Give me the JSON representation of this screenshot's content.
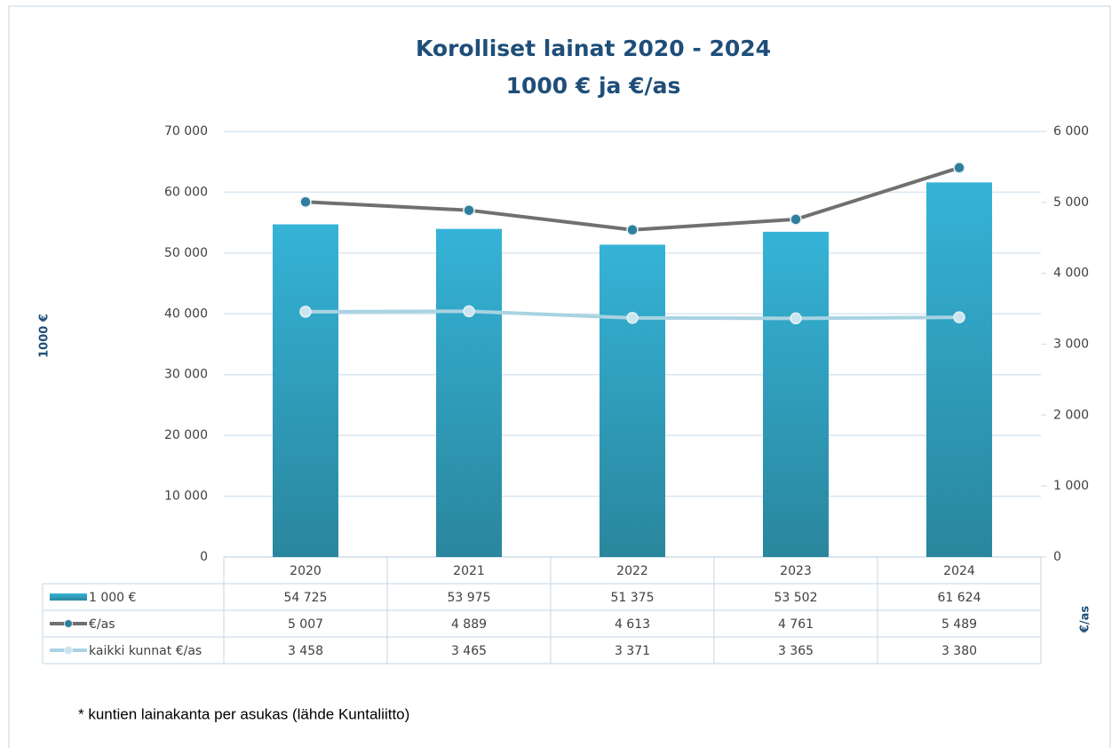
{
  "chart_data": {
    "type": "bar",
    "title": "Korolliset lainat 2020 - 2024",
    "subtitle": "1000 € ja €/as",
    "y_label": "1000 €",
    "y2_label": "€/as",
    "note": "* kuntien lainakanta per asukas (lähde Kuntaliitto)",
    "categories": [
      "2020",
      "2021",
      "2022",
      "2023",
      "2024"
    ],
    "series": [
      {
        "name": "1 000 €",
        "type": "bar",
        "color": "#35b3d7",
        "values": [
          54725,
          53975,
          51375,
          53502,
          61624
        ],
        "value_labels": [
          "54 725",
          "53 975",
          "51 375",
          "53 502",
          "61 624"
        ]
      },
      {
        "name": "€/as",
        "type": "line",
        "axis": "y2",
        "color": "#707070",
        "marker_color": "#2f7f9c",
        "values": [
          5007,
          4889,
          4613,
          4761,
          5489
        ],
        "value_labels": [
          "5 007",
          "4 889",
          "4 613",
          "4 761",
          "5 489"
        ]
      },
      {
        "name": "kaikki kunnat €/as",
        "type": "line",
        "axis": "y2",
        "color": "#a8d3e2",
        "marker_color": "#c9e5ef",
        "values": [
          3458,
          3465,
          3371,
          3365,
          3380
        ],
        "value_labels": [
          "3 458",
          "3 465",
          "3 371",
          "3 365",
          "3 380"
        ]
      }
    ],
    "ylim": [
      0,
      70000
    ],
    "yticks": [
      0,
      {
        "value": 10000,
        "label": "10 000"
      },
      {
        "value": 20000,
        "label": "20 000"
      },
      {
        "value": 30000,
        "label": "30 000"
      },
      {
        "value": 40000,
        "label": "40 000"
      },
      {
        "value": 50000,
        "label": "50 000"
      },
      {
        "value": 60000,
        "label": "60 000"
      },
      {
        "value": 70000,
        "label": "70 000"
      }
    ],
    "y2lim": [
      0,
      6000
    ],
    "y2ticks": [
      0,
      {
        "value": 1000,
        "label": "1 000"
      },
      {
        "value": 2000,
        "label": "2 000"
      },
      {
        "value": 3000,
        "label": "3 000"
      },
      {
        "value": 4000,
        "label": "4 000"
      },
      {
        "value": 5000,
        "label": "5 000"
      },
      {
        "value": 6000,
        "label": "6 000"
      }
    ],
    "grid": true
  }
}
